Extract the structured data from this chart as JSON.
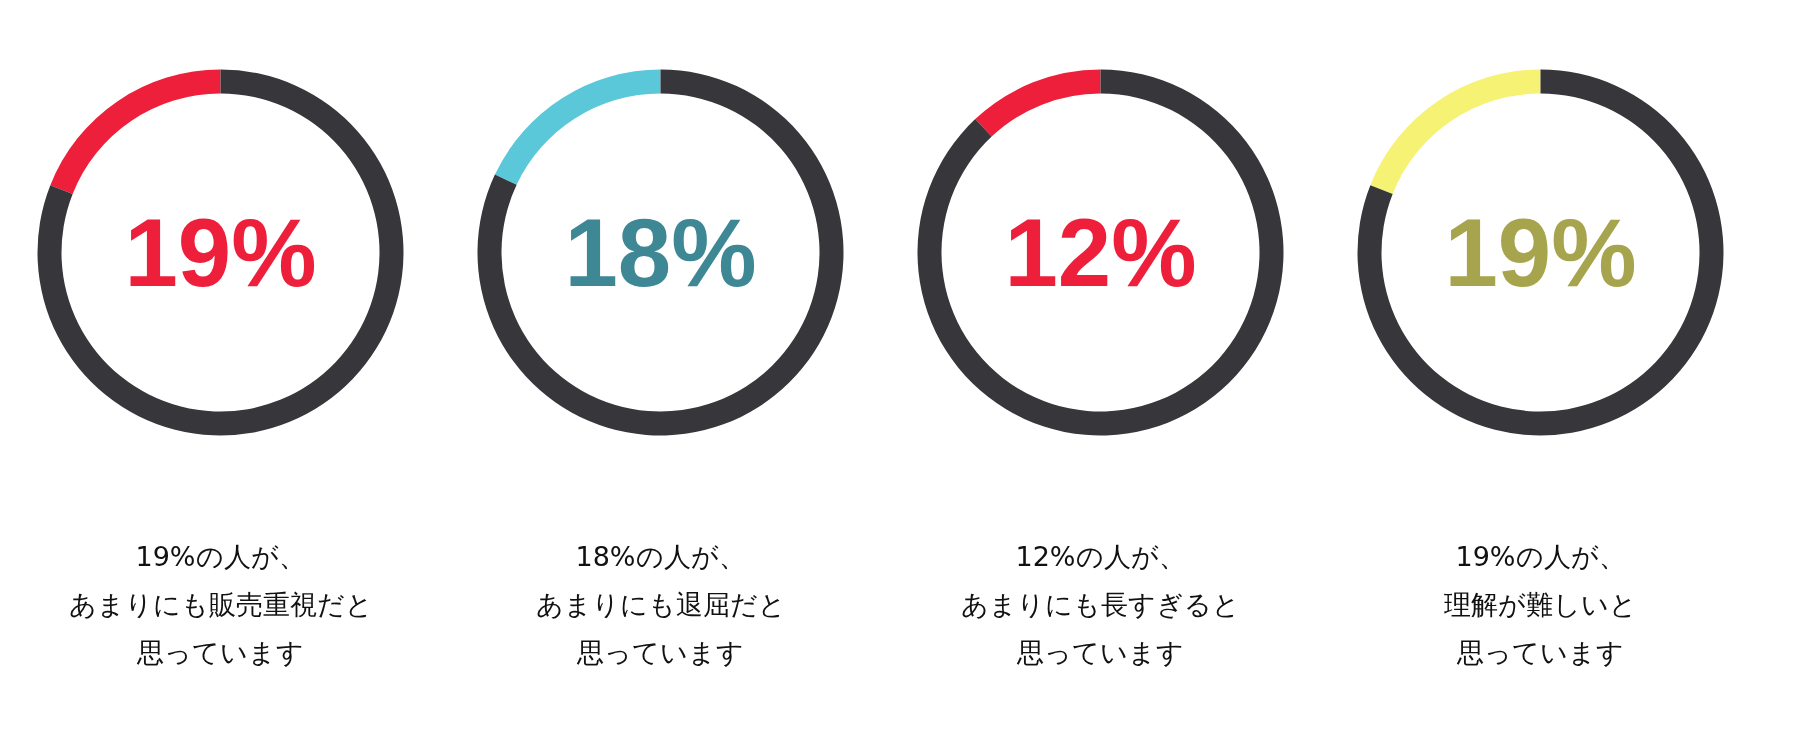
{
  "chart_data": [
    {
      "type": "donut",
      "categories": [
        null,
        null
      ],
      "values": [
        19,
        81
      ],
      "colors": [
        "#ee1f3b",
        "#37363a"
      ],
      "annotations": [
        "19%",
        "19%の人が、",
        "あまりにも販売重視だと",
        "思っています"
      ]
    },
    {
      "type": "donut",
      "categories": [
        null,
        null
      ],
      "values": [
        18,
        82
      ],
      "colors": [
        "#5bc8da",
        "#37363a"
      ],
      "annotations": [
        "18%",
        "18%の人が、",
        "あまりにも退屈だと",
        "思っています"
      ]
    },
    {
      "type": "donut",
      "categories": [
        null,
        null
      ],
      "values": [
        12,
        88
      ],
      "colors": [
        "#ee1f3b",
        "#37363a"
      ],
      "annotations": [
        "12%",
        "12%の人が、",
        "あまりにも長すぎると",
        "思っています"
      ]
    },
    {
      "type": "donut",
      "categories": [
        null,
        null
      ],
      "values": [
        19,
        81
      ],
      "colors": [
        "#f6f274",
        "#37363a"
      ],
      "annotations": [
        "19%",
        "19%の人が、",
        "理解が難しいと",
        "思っています"
      ]
    }
  ]
}
